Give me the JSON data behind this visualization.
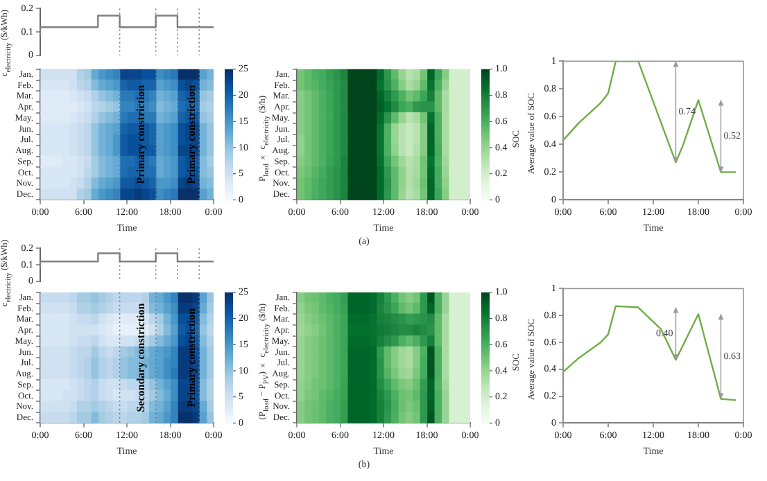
{
  "chart_data": [
    {
      "type": "step",
      "ylabel": "c$_{electricity}$ ($/kWh)",
      "x": [
        0,
        8,
        11,
        16,
        19,
        22,
        24
      ],
      "values": [
        0.08,
        0.12,
        0.17,
        0.12,
        0.17,
        0.12,
        0.12
      ],
      "color": "#7f7f7f",
      "xlim": [
        0,
        24
      ],
      "ylim": [
        0,
        0.2
      ],
      "yticks": [
        0,
        0.1,
        0.2
      ],
      "tick_labels": "y",
      "ref_lines": [
        {
          "axis": "x",
          "value": 11,
          "line_style": "dotted"
        },
        {
          "axis": "x",
          "value": 16,
          "line_style": "dotted"
        },
        {
          "axis": "x",
          "value": 19,
          "line_style": "dotted"
        },
        {
          "axis": "x",
          "value": 22,
          "line_style": "dotted"
        }
      ]
    },
    {
      "type": "heatmap",
      "xlabel": "Time",
      "clabel": "P$_{load}$ × c$_{electricity}$ ($/h)",
      "x": [
        0.5,
        1.5,
        2.5,
        3.5,
        4.5,
        5.5,
        6.5,
        7.5,
        8.5,
        9.5,
        10.5,
        11.5,
        12.5,
        13.5,
        14.5,
        15.5,
        16.5,
        17.5,
        18.5,
        19.5,
        20.5,
        21.5,
        22.5,
        23.5
      ],
      "y_categories": [
        "Jan.",
        "Feb.",
        "Mar.",
        "Apr.",
        "May.",
        "Jun.",
        "Jul.",
        "Aug.",
        "Sep.",
        "Oct.",
        "Nov.",
        "Dec."
      ],
      "color": "#08306b",
      "xlim": [
        0,
        24
      ],
      "xticks": [
        {
          "value": 0,
          "label": "0:00"
        },
        {
          "value": 6,
          "label": "6:00"
        },
        {
          "value": 12,
          "label": "12:00"
        },
        {
          "value": 18,
          "label": "18:00"
        },
        {
          "value": 24,
          "label": "0:00"
        }
      ],
      "clim": [
        0,
        25
      ],
      "cticks": [
        0,
        5,
        10,
        15,
        20,
        25
      ],
      "cells": [
        [
          5,
          5,
          5,
          5,
          5,
          8,
          9,
          13,
          15,
          16,
          17,
          23,
          23,
          23,
          22,
          22,
          16,
          17,
          18,
          25,
          25,
          25,
          14,
          12
        ],
        [
          4,
          4,
          4,
          4,
          5,
          7,
          8,
          11,
          13,
          14,
          15,
          20,
          21,
          21,
          20,
          20,
          14,
          15,
          16,
          22,
          23,
          22,
          12,
          11
        ],
        [
          3,
          3,
          3,
          3,
          4,
          5,
          6,
          8,
          10,
          11,
          12,
          18,
          18,
          19,
          18,
          17,
          12,
          13,
          14,
          20,
          21,
          20,
          10,
          9
        ],
        [
          3,
          3,
          3,
          3,
          3,
          4,
          5,
          7,
          8,
          9,
          10,
          17,
          17,
          18,
          17,
          16,
          11,
          12,
          13,
          19,
          20,
          19,
          9,
          8
        ],
        [
          3,
          3,
          3,
          3,
          4,
          5,
          6,
          8,
          10,
          11,
          12,
          18,
          19,
          19,
          18,
          18,
          12,
          13,
          14,
          20,
          21,
          21,
          10,
          9
        ],
        [
          4,
          4,
          4,
          4,
          5,
          6,
          7,
          10,
          12,
          13,
          14,
          20,
          21,
          21,
          21,
          20,
          14,
          15,
          16,
          22,
          23,
          23,
          12,
          10
        ],
        [
          4,
          4,
          4,
          4,
          5,
          6,
          7,
          10,
          12,
          13,
          15,
          21,
          22,
          22,
          21,
          20,
          14,
          15,
          16,
          22,
          23,
          23,
          12,
          10
        ],
        [
          4,
          4,
          4,
          4,
          5,
          6,
          7,
          10,
          12,
          13,
          15,
          21,
          22,
          22,
          21,
          21,
          14,
          15,
          16,
          23,
          23,
          23,
          12,
          10
        ],
        [
          3,
          3,
          3,
          4,
          4,
          5,
          6,
          9,
          11,
          12,
          13,
          19,
          19,
          20,
          19,
          18,
          13,
          14,
          15,
          21,
          22,
          21,
          11,
          9
        ],
        [
          4,
          4,
          4,
          4,
          4,
          5,
          7,
          9,
          11,
          12,
          13,
          19,
          20,
          20,
          19,
          19,
          13,
          14,
          15,
          21,
          22,
          22,
          11,
          10
        ],
        [
          4,
          4,
          4,
          4,
          5,
          6,
          8,
          11,
          13,
          14,
          15,
          21,
          21,
          22,
          21,
          20,
          15,
          15,
          16,
          23,
          24,
          23,
          12,
          11
        ],
        [
          5,
          5,
          5,
          5,
          5,
          8,
          9,
          13,
          15,
          16,
          17,
          23,
          23,
          24,
          23,
          22,
          16,
          17,
          18,
          25,
          25,
          25,
          14,
          12
        ]
      ],
      "ref_lines": [
        {
          "axis": "x",
          "value": 11,
          "line_style": "dotted"
        },
        {
          "axis": "x",
          "value": 16,
          "line_style": "dotted"
        },
        {
          "axis": "x",
          "value": 19,
          "line_style": "dotted"
        },
        {
          "axis": "x",
          "value": 22,
          "line_style": "dotted"
        }
      ],
      "annotations": [
        "Primary constriction",
        "Primary constriction"
      ]
    },
    {
      "type": "heatmap",
      "xlabel": "Time",
      "clabel": "SOC",
      "annotations": [
        "(a)"
      ],
      "x": [
        0.5,
        1.5,
        2.5,
        3.5,
        4.5,
        5.5,
        6.5,
        7.5,
        8.5,
        9.5,
        10.5,
        11.5,
        12.5,
        13.5,
        14.5,
        15.5,
        16.5,
        17.5,
        18.5,
        19.5,
        20.5,
        21.5,
        22.5,
        23.5
      ],
      "y_categories": [
        "Jan.",
        "Feb.",
        "Mar.",
        "Apr.",
        "May.",
        "Jun.",
        "Jul.",
        "Aug.",
        "Sep.",
        "Oct.",
        "Nov.",
        "Dec."
      ],
      "color": "#00441b",
      "xlim": [
        0,
        24
      ],
      "xticks": [
        {
          "value": 0,
          "label": "0:00"
        },
        {
          "value": 6,
          "label": "6:00"
        },
        {
          "value": 12,
          "label": "12:00"
        },
        {
          "value": 18,
          "label": "18:00"
        },
        {
          "value": 24,
          "label": "0:00"
        }
      ],
      "clim": [
        0,
        1
      ],
      "cticks": [
        0,
        0.2,
        0.4,
        0.6,
        0.8,
        {
          "value": 1,
          "label": "1.0"
        }
      ],
      "cells": [
        [
          0.5,
          0.55,
          0.6,
          0.62,
          0.68,
          0.72,
          0.78,
          1,
          1,
          1,
          1,
          0.88,
          0.7,
          0.55,
          0.4,
          0.3,
          0.35,
          0.5,
          0.9,
          0.65,
          0.45,
          0.2,
          0.2,
          0.2
        ],
        [
          0.5,
          0.55,
          0.58,
          0.62,
          0.66,
          0.7,
          0.75,
          1,
          1,
          1,
          1,
          0.85,
          0.72,
          0.6,
          0.45,
          0.35,
          0.4,
          0.55,
          0.85,
          0.6,
          0.4,
          0.2,
          0.2,
          0.2
        ],
        [
          0.45,
          0.5,
          0.55,
          0.6,
          0.65,
          0.7,
          0.76,
          1,
          1,
          1,
          1,
          0.9,
          0.8,
          0.7,
          0.6,
          0.5,
          0.55,
          0.65,
          0.8,
          0.55,
          0.35,
          0.2,
          0.2,
          0.2
        ],
        [
          0.45,
          0.5,
          0.55,
          0.6,
          0.65,
          0.7,
          0.75,
          1,
          1,
          1,
          1,
          0.92,
          0.85,
          0.75,
          0.65,
          0.6,
          0.7,
          0.72,
          0.72,
          0.55,
          0.35,
          0.2,
          0.2,
          0.2
        ],
        [
          0.45,
          0.5,
          0.55,
          0.6,
          0.64,
          0.7,
          0.76,
          1,
          1,
          1,
          1,
          0.88,
          0.72,
          0.55,
          0.4,
          0.3,
          0.35,
          0.5,
          0.85,
          0.6,
          0.35,
          0.2,
          0.2,
          0.2
        ],
        [
          0.45,
          0.5,
          0.55,
          0.6,
          0.65,
          0.7,
          0.76,
          1,
          1,
          1,
          1,
          0.85,
          0.6,
          0.4,
          0.3,
          0.25,
          0.3,
          0.45,
          0.9,
          0.6,
          0.35,
          0.2,
          0.2,
          0.2
        ],
        [
          0.42,
          0.5,
          0.55,
          0.6,
          0.65,
          0.7,
          0.76,
          1,
          1,
          1,
          1,
          0.85,
          0.6,
          0.4,
          0.3,
          0.25,
          0.3,
          0.45,
          0.9,
          0.6,
          0.35,
          0.2,
          0.2,
          0.2
        ],
        [
          0.42,
          0.5,
          0.55,
          0.6,
          0.65,
          0.7,
          0.76,
          1,
          1,
          1,
          1,
          0.85,
          0.6,
          0.42,
          0.3,
          0.25,
          0.32,
          0.45,
          0.9,
          0.62,
          0.35,
          0.2,
          0.2,
          0.2
        ],
        [
          0.45,
          0.5,
          0.55,
          0.6,
          0.66,
          0.7,
          0.78,
          1,
          1,
          1,
          1,
          0.86,
          0.65,
          0.5,
          0.38,
          0.3,
          0.35,
          0.5,
          0.85,
          0.6,
          0.38,
          0.2,
          0.2,
          0.2
        ],
        [
          0.48,
          0.52,
          0.58,
          0.62,
          0.68,
          0.72,
          0.78,
          1,
          1,
          1,
          1,
          0.88,
          0.7,
          0.55,
          0.42,
          0.32,
          0.36,
          0.5,
          0.88,
          0.62,
          0.4,
          0.2,
          0.2,
          0.2
        ],
        [
          0.5,
          0.55,
          0.6,
          0.64,
          0.68,
          0.72,
          0.78,
          1,
          1,
          1,
          1,
          0.88,
          0.72,
          0.55,
          0.42,
          0.32,
          0.38,
          0.52,
          0.9,
          0.62,
          0.42,
          0.2,
          0.2,
          0.2
        ],
        [
          0.5,
          0.55,
          0.6,
          0.64,
          0.68,
          0.72,
          0.78,
          1,
          1,
          1,
          1,
          0.88,
          0.7,
          0.55,
          0.4,
          0.3,
          0.35,
          0.5,
          0.9,
          0.65,
          0.45,
          0.2,
          0.2,
          0.2
        ]
      ]
    },
    {
      "type": "line",
      "xlabel": "Time",
      "ylabel": "Average value of SOC",
      "x": [
        0,
        2,
        5,
        6,
        7,
        10,
        15,
        16,
        18,
        21,
        23
      ],
      "values": [
        0.43,
        0.55,
        0.7,
        0.77,
        1,
        1,
        0.27,
        0.4,
        0.72,
        0.2,
        0.2
      ],
      "color": "#70ad47",
      "marker": "none",
      "xlim": [
        0,
        24
      ],
      "xticks": [
        {
          "value": 0,
          "label": "0:00"
        },
        {
          "value": 6,
          "label": "6:00"
        },
        {
          "value": 12,
          "label": "12:00"
        },
        {
          "value": 18,
          "label": "18:00"
        },
        {
          "value": 24,
          "label": "0:00"
        }
      ],
      "ylim": [
        0,
        1
      ],
      "yticks": [
        0,
        0.2,
        0.4,
        0.6,
        0.8,
        1
      ],
      "annotations": [
        "0.74",
        "0.52"
      ]
    },
    {
      "type": "step",
      "ylabel": "c$_{electricity}$ ($/kWh)",
      "x": [
        0,
        8,
        11,
        16,
        19,
        22,
        24
      ],
      "values": [
        0.08,
        0.12,
        0.17,
        0.12,
        0.17,
        0.12,
        0.12
      ],
      "color": "#7f7f7f",
      "xlim": [
        0,
        24
      ],
      "ylim": [
        0,
        0.2
      ],
      "yticks": [
        0,
        0.1,
        0.2
      ],
      "tick_labels": "y",
      "ref_lines": [
        {
          "axis": "x",
          "value": 11,
          "line_style": "dotted"
        },
        {
          "axis": "x",
          "value": 16,
          "line_style": "dotted"
        },
        {
          "axis": "x",
          "value": 19,
          "line_style": "dotted"
        },
        {
          "axis": "x",
          "value": 22,
          "line_style": "dotted"
        }
      ]
    },
    {
      "type": "heatmap",
      "xlabel": "Time",
      "clabel": "(P$_{load}$ − P$_{PV}$) × c$_{electricity}$ ($/h)",
      "x": [
        0.5,
        1.5,
        2.5,
        3.5,
        4.5,
        5.5,
        6.5,
        7.5,
        8.5,
        9.5,
        10.5,
        11.5,
        12.5,
        13.5,
        14.5,
        15.5,
        16.5,
        17.5,
        18.5,
        19.5,
        20.5,
        21.5,
        22.5,
        23.5
      ],
      "y_categories": [
        "Jan.",
        "Feb.",
        "Mar.",
        "Apr.",
        "May.",
        "Jun.",
        "Jul.",
        "Aug.",
        "Sep.",
        "Oct.",
        "Nov.",
        "Dec."
      ],
      "color": "#08306b",
      "xlim": [
        0,
        24
      ],
      "xticks": [
        {
          "value": 0,
          "label": "0:00"
        },
        {
          "value": 6,
          "label": "6:00"
        },
        {
          "value": 12,
          "label": "12:00"
        },
        {
          "value": 18,
          "label": "18:00"
        },
        {
          "value": 24,
          "label": "0:00"
        }
      ],
      "clim": [
        0,
        25
      ],
      "cticks": [
        0,
        5,
        10,
        15,
        20,
        25
      ],
      "cells": [
        [
          6,
          6,
          6,
          6,
          7,
          9,
          9,
          10,
          9,
          8,
          7,
          7,
          7,
          7,
          8,
          12,
          13,
          15,
          17,
          25,
          25,
          24,
          14,
          10
        ],
        [
          5,
          5,
          5,
          5,
          6,
          8,
          8,
          9,
          8,
          7,
          6,
          6,
          6,
          6,
          7,
          11,
          12,
          14,
          16,
          24,
          24,
          23,
          13,
          9
        ],
        [
          4,
          4,
          4,
          4,
          5,
          6,
          6,
          7,
          5,
          4,
          3,
          3,
          3,
          3,
          4,
          7,
          9,
          12,
          15,
          22,
          22,
          21,
          11,
          8
        ],
        [
          4,
          4,
          4,
          4,
          5,
          5,
          5,
          5,
          4,
          3,
          2,
          2,
          2,
          2,
          3,
          5,
          8,
          11,
          14,
          21,
          22,
          20,
          10,
          7
        ],
        [
          4,
          4,
          4,
          4,
          5,
          6,
          6,
          7,
          5,
          4,
          4,
          5,
          5,
          6,
          7,
          9,
          11,
          13,
          15,
          22,
          23,
          21,
          11,
          8
        ],
        [
          5,
          5,
          5,
          5,
          6,
          7,
          7,
          9,
          7,
          6,
          7,
          9,
          10,
          11,
          11,
          13,
          14,
          15,
          17,
          24,
          24,
          22,
          12,
          9
        ],
        [
          5,
          5,
          5,
          5,
          6,
          7,
          8,
          10,
          8,
          7,
          8,
          10,
          11,
          11,
          12,
          13,
          14,
          16,
          17,
          24,
          24,
          23,
          12,
          9
        ],
        [
          5,
          5,
          5,
          5,
          6,
          7,
          8,
          10,
          8,
          7,
          8,
          10,
          11,
          11,
          11,
          13,
          14,
          16,
          18,
          24,
          24,
          23,
          12,
          9
        ],
        [
          4,
          4,
          4,
          4,
          5,
          6,
          7,
          8,
          6,
          5,
          5,
          6,
          7,
          7,
          8,
          10,
          12,
          14,
          16,
          23,
          23,
          22,
          11,
          8
        ],
        [
          4,
          4,
          4,
          5,
          5,
          6,
          7,
          8,
          6,
          5,
          4,
          5,
          5,
          6,
          7,
          9,
          11,
          13,
          16,
          23,
          23,
          22,
          11,
          8
        ],
        [
          5,
          5,
          5,
          5,
          6,
          8,
          8,
          9,
          8,
          7,
          6,
          6,
          7,
          7,
          8,
          11,
          12,
          14,
          17,
          24,
          24,
          23,
          13,
          9
        ],
        [
          6,
          6,
          6,
          6,
          7,
          9,
          9,
          11,
          9,
          8,
          7,
          7,
          8,
          8,
          9,
          12,
          13,
          15,
          17,
          25,
          25,
          24,
          14,
          10
        ]
      ],
      "ref_lines": [
        {
          "axis": "x",
          "value": 11,
          "line_style": "dotted"
        },
        {
          "axis": "x",
          "value": 16,
          "line_style": "dotted"
        },
        {
          "axis": "x",
          "value": 19,
          "line_style": "dotted"
        },
        {
          "axis": "x",
          "value": 22,
          "line_style": "dotted"
        }
      ],
      "annotations": [
        "Secondary constriction",
        "Primary constriction"
      ]
    },
    {
      "type": "heatmap",
      "xlabel": "Time",
      "clabel": "SOC",
      "annotations": [
        "(b)"
      ],
      "x": [
        0.5,
        1.5,
        2.5,
        3.5,
        4.5,
        5.5,
        6.5,
        7.5,
        8.5,
        9.5,
        10.5,
        11.5,
        12.5,
        13.5,
        14.5,
        15.5,
        16.5,
        17.5,
        18.5,
        19.5,
        20.5,
        21.5,
        22.5,
        23.5
      ],
      "y_categories": [
        "Jan.",
        "Feb.",
        "Mar.",
        "Apr.",
        "May.",
        "Jun.",
        "Jul.",
        "Aug.",
        "Sep.",
        "Oct.",
        "Nov.",
        "Dec."
      ],
      "color": "#00441b",
      "xlim": [
        0,
        24
      ],
      "xticks": [
        {
          "value": 0,
          "label": "0:00"
        },
        {
          "value": 6,
          "label": "6:00"
        },
        {
          "value": 12,
          "label": "12:00"
        },
        {
          "value": 18,
          "label": "18:00"
        },
        {
          "value": 24,
          "label": "0:00"
        }
      ],
      "clim": [
        0,
        1
      ],
      "cticks": [
        0,
        0.2,
        0.4,
        0.6,
        0.8,
        {
          "value": 1,
          "label": "1.0"
        }
      ],
      "cells": [
        [
          0.45,
          0.5,
          0.52,
          0.55,
          0.6,
          0.62,
          0.68,
          0.9,
          0.9,
          0.9,
          0.88,
          0.8,
          0.7,
          0.6,
          0.5,
          0.45,
          0.5,
          0.7,
          0.95,
          0.6,
          0.4,
          0.18,
          0.18,
          0.18
        ],
        [
          0.42,
          0.48,
          0.5,
          0.55,
          0.58,
          0.62,
          0.66,
          0.9,
          0.9,
          0.9,
          0.88,
          0.78,
          0.72,
          0.65,
          0.55,
          0.5,
          0.55,
          0.7,
          0.9,
          0.6,
          0.4,
          0.18,
          0.18,
          0.18
        ],
        [
          0.4,
          0.45,
          0.48,
          0.52,
          0.56,
          0.6,
          0.65,
          0.88,
          0.88,
          0.88,
          0.85,
          0.8,
          0.78,
          0.75,
          0.72,
          0.68,
          0.7,
          0.72,
          0.75,
          0.55,
          0.35,
          0.18,
          0.18,
          0.18
        ],
        [
          0.38,
          0.42,
          0.45,
          0.5,
          0.55,
          0.6,
          0.65,
          0.86,
          0.86,
          0.86,
          0.85,
          0.82,
          0.8,
          0.78,
          0.75,
          0.75,
          0.78,
          0.75,
          0.72,
          0.55,
          0.35,
          0.18,
          0.18,
          0.18
        ],
        [
          0.4,
          0.45,
          0.48,
          0.52,
          0.56,
          0.6,
          0.65,
          0.88,
          0.88,
          0.88,
          0.86,
          0.8,
          0.75,
          0.7,
          0.6,
          0.55,
          0.6,
          0.7,
          0.8,
          0.55,
          0.35,
          0.18,
          0.18,
          0.18
        ],
        [
          0.4,
          0.45,
          0.48,
          0.52,
          0.56,
          0.6,
          0.65,
          0.9,
          0.9,
          0.9,
          0.88,
          0.7,
          0.55,
          0.45,
          0.38,
          0.35,
          0.45,
          0.6,
          0.95,
          0.6,
          0.35,
          0.18,
          0.18,
          0.18
        ],
        [
          0.4,
          0.45,
          0.48,
          0.52,
          0.56,
          0.6,
          0.65,
          0.9,
          0.9,
          0.9,
          0.88,
          0.72,
          0.55,
          0.45,
          0.38,
          0.35,
          0.45,
          0.62,
          0.95,
          0.6,
          0.35,
          0.18,
          0.18,
          0.18
        ],
        [
          0.4,
          0.45,
          0.48,
          0.52,
          0.56,
          0.6,
          0.65,
          0.9,
          0.9,
          0.9,
          0.88,
          0.72,
          0.58,
          0.48,
          0.4,
          0.38,
          0.48,
          0.62,
          0.95,
          0.6,
          0.35,
          0.18,
          0.18,
          0.18
        ],
        [
          0.42,
          0.46,
          0.5,
          0.52,
          0.56,
          0.6,
          0.66,
          0.9,
          0.9,
          0.9,
          0.88,
          0.75,
          0.65,
          0.55,
          0.48,
          0.45,
          0.52,
          0.68,
          0.9,
          0.58,
          0.38,
          0.18,
          0.18,
          0.18
        ],
        [
          0.42,
          0.48,
          0.5,
          0.55,
          0.58,
          0.62,
          0.66,
          0.9,
          0.9,
          0.9,
          0.88,
          0.78,
          0.7,
          0.6,
          0.52,
          0.5,
          0.55,
          0.7,
          0.9,
          0.6,
          0.4,
          0.18,
          0.18,
          0.18
        ],
        [
          0.45,
          0.5,
          0.52,
          0.55,
          0.6,
          0.62,
          0.68,
          0.9,
          0.9,
          0.9,
          0.88,
          0.8,
          0.72,
          0.62,
          0.52,
          0.48,
          0.52,
          0.7,
          0.92,
          0.6,
          0.4,
          0.18,
          0.18,
          0.18
        ],
        [
          0.45,
          0.5,
          0.52,
          0.55,
          0.6,
          0.62,
          0.68,
          0.9,
          0.9,
          0.9,
          0.88,
          0.8,
          0.7,
          0.6,
          0.5,
          0.45,
          0.5,
          0.7,
          0.95,
          0.6,
          0.4,
          0.18,
          0.18,
          0.18
        ]
      ]
    },
    {
      "type": "line",
      "xlabel": "Time",
      "ylabel": "Average value of SOC",
      "x": [
        0,
        2,
        5,
        6,
        7,
        10,
        13,
        15,
        18,
        21,
        23
      ],
      "values": [
        0.38,
        0.48,
        0.6,
        0.66,
        0.87,
        0.86,
        0.7,
        0.47,
        0.81,
        0.18,
        0.17
      ],
      "color": "#70ad47",
      "marker": "none",
      "xlim": [
        0,
        24
      ],
      "xticks": [
        {
          "value": 0,
          "label": "0:00"
        },
        {
          "value": 6,
          "label": "6:00"
        },
        {
          "value": 12,
          "label": "12:00"
        },
        {
          "value": 18,
          "label": "18:00"
        },
        {
          "value": 24,
          "label": "0:00"
        }
      ],
      "ylim": [
        0,
        1
      ],
      "yticks": [
        0,
        0.2,
        0.4,
        0.6,
        0.8,
        1
      ],
      "annotations": [
        "0.40",
        "0.63"
      ]
    }
  ]
}
